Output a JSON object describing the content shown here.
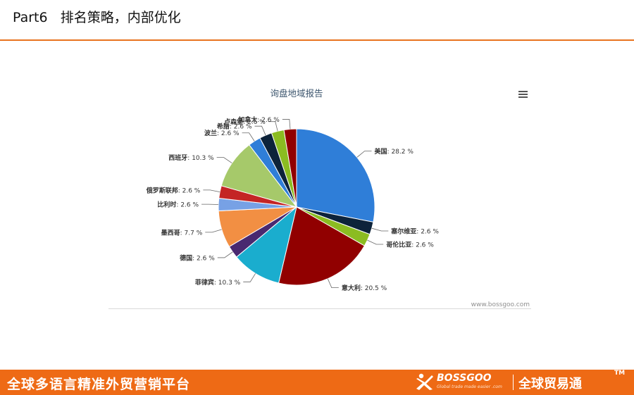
{
  "header": {
    "title": "Part6   排名策略，内部优化"
  },
  "chart_data": {
    "type": "pie",
    "title": "询盘地域报告",
    "credit": "www.bossgoo.com",
    "slices": [
      {
        "name": "美国",
        "value": 28.2,
        "label": "28.2 %",
        "color": "#2f7ed8"
      },
      {
        "name": "塞尔维亚",
        "value": 2.6,
        "label": "2.6 %",
        "color": "#0d233a"
      },
      {
        "name": "哥伦比亚",
        "value": 2.6,
        "label": "2.6 %",
        "color": "#8bbc21"
      },
      {
        "name": "意大利",
        "value": 20.5,
        "label": "20.5 %",
        "color": "#910000"
      },
      {
        "name": "菲律宾",
        "value": 10.3,
        "label": "10.3 %",
        "color": "#1aadce"
      },
      {
        "name": "德国",
        "value": 2.6,
        "label": "2.6 %",
        "color": "#492970"
      },
      {
        "name": "墨西哥",
        "value": 7.7,
        "label": "7.7 %",
        "color": "#f28f43"
      },
      {
        "name": "比利时",
        "value": 2.6,
        "label": "2.6 %",
        "color": "#77a1e5"
      },
      {
        "name": "俄罗斯联邦",
        "value": 2.6,
        "label": "2.6 %",
        "color": "#c42525"
      },
      {
        "name": "西班牙",
        "value": 10.3,
        "label": "10.3 %",
        "color": "#a6c96a"
      },
      {
        "name": "波兰",
        "value": 2.6,
        "label": "2.6 %",
        "color": "#2f7ed8"
      },
      {
        "name": "希腊",
        "value": 2.6,
        "label": "2.6 %",
        "color": "#0d233a"
      },
      {
        "name": "卢森堡",
        "value": 2.6,
        "label": "2.6 %",
        "color": "#8bbc21"
      },
      {
        "name": "加拿大",
        "value": 2.6,
        "label": "2.6 %",
        "color": "#910000"
      }
    ]
  },
  "chart_menu": {
    "icon": "hamburger-menu-icon"
  },
  "footer": {
    "slogan": "全球多语言精准外贸营销平台",
    "brand": "BOSSGOO",
    "tagline": "Global trade made easier  .com",
    "brand_cn": "全球贸易通",
    "tm": "TM",
    "accent_color": "#ee6a15"
  }
}
